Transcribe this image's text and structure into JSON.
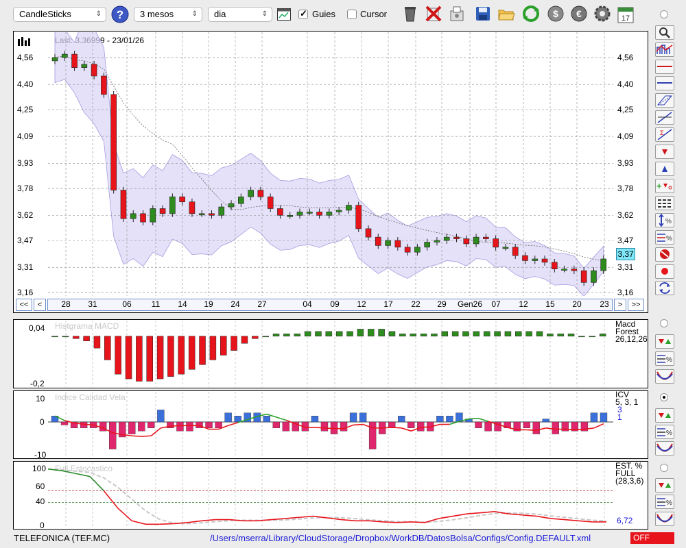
{
  "toolbar": {
    "chart_type": "CandleSticks",
    "period": "3 mesos",
    "interval": "dia",
    "guides_label": "Guies",
    "guides_checked": true,
    "cursor_label": "Cursor",
    "cursor_checked": false,
    "calendar_day": "17"
  },
  "main_chart": {
    "last_label": "Last: 3.36999 - 23/01/26",
    "y_ticks": [
      "4,56",
      "4,40",
      "4,25",
      "4,09",
      "3,93",
      "3,78",
      "3,62",
      "3,47",
      "3,31",
      "3,16"
    ],
    "current_value": "3,37",
    "x_labels": [
      "28",
      "31",
      "06",
      "11",
      "14",
      "19",
      "24",
      "27",
      "04",
      "09",
      "12",
      "17",
      "22",
      "29",
      "Gen26",
      "07",
      "12",
      "15",
      "20",
      "23"
    ],
    "nav": {
      "first": "<<",
      "prev": "<",
      "next": ">",
      "last": ">>"
    }
  },
  "macd": {
    "title": "Histgrama MACD",
    "y_top": "0,04",
    "y_bottom": "-0,2",
    "legend": [
      "Macd",
      "Forest",
      "26,12,26"
    ]
  },
  "icv": {
    "title": "Indice Calidad Vela",
    "y_ticks": [
      "10",
      "0",
      "-10"
    ],
    "legend": [
      "ICV",
      "5, 3, 1"
    ],
    "value_1": "3",
    "value_2": "1"
  },
  "stoch": {
    "title": "Full Estocastico",
    "y_ticks": [
      "100",
      "60",
      "40",
      "0"
    ],
    "legend": [
      "EST. %",
      "FULL",
      "(28,3,6)"
    ],
    "value": "6,72"
  },
  "status": {
    "ticker": "TELEFONICA (TEF.MC)",
    "path": "/Users/mserra/Library/CloudStorage/Dropbox/WorkDB/DatosBolsa/Configs/Config.DEFAULT.xml",
    "off": "OFF"
  },
  "colors": {
    "up": "#2e8b1e",
    "down": "#e8141b",
    "band": "#d9d4f5",
    "icv_pos": "#3b6fd9",
    "icv_neg": "#e0266c",
    "path": "#1a1ad8",
    "off_bg": "#e8141b"
  },
  "chart_data": {
    "type": "candlestick",
    "y_range": [
      3.16,
      4.56
    ],
    "x_labels": [
      "28",
      "31",
      "06",
      "11",
      "14",
      "19",
      "24",
      "27",
      "04",
      "09",
      "12",
      "17",
      "22",
      "29",
      "Gen26",
      "07",
      "12",
      "15",
      "20",
      "23"
    ],
    "last_close": 3.37,
    "closes": [
      4.56,
      4.58,
      4.5,
      4.52,
      4.45,
      4.34,
      3.77,
      3.6,
      3.63,
      3.58,
      3.66,
      3.63,
      3.73,
      3.7,
      3.63,
      3.63,
      3.62,
      3.67,
      3.69,
      3.73,
      3.77,
      3.73,
      3.66,
      3.62,
      3.62,
      3.64,
      3.64,
      3.62,
      3.64,
      3.65,
      3.68,
      3.54,
      3.49,
      3.44,
      3.47,
      3.43,
      3.4,
      3.43,
      3.46,
      3.47,
      3.49,
      3.48,
      3.45,
      3.49,
      3.48,
      3.43,
      3.43,
      3.38,
      3.35,
      3.36,
      3.34,
      3.3,
      3.3,
      3.29,
      3.22,
      3.29,
      3.36
    ],
    "macd_hist": [
      0.0,
      0.0,
      -0.01,
      -0.02,
      -0.05,
      -0.1,
      -0.16,
      -0.18,
      -0.19,
      -0.19,
      -0.18,
      -0.17,
      -0.16,
      -0.14,
      -0.12,
      -0.1,
      -0.08,
      -0.06,
      -0.03,
      -0.01,
      0.0,
      0.01,
      0.01,
      0.01,
      0.02,
      0.02,
      0.02,
      0.02,
      0.02,
      0.03,
      0.03,
      0.03,
      0.02,
      0.01,
      0.01,
      0.01,
      0.01,
      0.02,
      0.02,
      0.02,
      0.02,
      0.02,
      0.02,
      0.02,
      0.02,
      0.02,
      0.02,
      0.01,
      0.01,
      0.01,
      0.0,
      0.0,
      0.01
    ],
    "icv": [
      2,
      -1,
      -2,
      -2,
      -2,
      -3,
      -9,
      -5,
      -4,
      -3,
      -2,
      4,
      -2,
      -3,
      -3,
      -2,
      -2,
      -2,
      3,
      2,
      3,
      3,
      2,
      -2,
      -3,
      -3,
      -3,
      2,
      -3,
      -4,
      -3,
      3,
      3,
      -9,
      -4,
      -2,
      2,
      -2,
      -3,
      -3,
      2,
      2,
      3,
      1,
      -2,
      -3,
      -3,
      -2,
      -3,
      -2,
      -4,
      1,
      -4,
      -3,
      -3,
      -3,
      3,
      3
    ],
    "stoch_k": [
      98,
      95,
      90,
      85,
      60,
      30,
      8,
      2,
      2,
      3,
      5,
      8,
      10,
      10,
      8,
      8,
      10,
      12,
      14,
      16,
      13,
      10,
      8,
      8,
      6,
      5,
      6,
      5,
      12,
      16,
      20,
      22,
      24,
      20,
      18,
      16,
      12,
      10,
      8,
      6,
      6
    ]
  }
}
